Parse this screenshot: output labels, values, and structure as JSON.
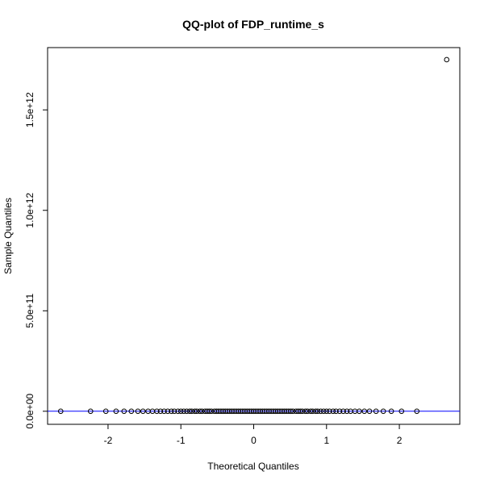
{
  "chart_data": {
    "type": "scatter",
    "title": "QQ-plot of FDP_runtime_s",
    "xlabel": "Theoretical Quantiles",
    "ylabel": "Sample Quantiles",
    "xlim": [
      -2.83,
      2.83
    ],
    "ylim": [
      -65000000000,
      1810000000000
    ],
    "x_ticks": [
      -2,
      -1,
      0,
      1,
      2
    ],
    "x_tick_labels": [
      "-2",
      "-1",
      "0",
      "1",
      "2"
    ],
    "y_ticks": [
      0,
      500000000000,
      1000000000000,
      1500000000000
    ],
    "y_tick_labels": [
      "0.0e+00",
      "5.0e+11",
      "1.0e+12",
      "1.5e+12"
    ],
    "grid": false,
    "legend": "none",
    "reference_line": {
      "type": "qqline",
      "color": "#0000ff",
      "y": 0
    },
    "point_color": "#000000",
    "series": [
      {
        "x": [
          -2.65,
          -2.24,
          -2.03,
          -1.89,
          -1.78,
          -1.68,
          -1.59,
          -1.52,
          -1.45,
          -1.39,
          -1.33,
          -1.28,
          -1.23,
          -1.18,
          -1.13,
          -1.09,
          -1.04,
          -1.0,
          -0.96,
          -0.92,
          -0.88,
          -0.85,
          -0.81,
          -0.78,
          -0.74,
          -0.71,
          -0.67,
          -0.64,
          -0.61,
          -0.58,
          -0.54,
          -0.51,
          -0.48,
          -0.45,
          -0.42,
          -0.39,
          -0.36,
          -0.33,
          -0.3,
          -0.27,
          -0.24,
          -0.21,
          -0.18,
          -0.15,
          -0.12,
          -0.09,
          -0.06,
          -0.03,
          0.0,
          0.03,
          0.06,
          0.09,
          0.12,
          0.15,
          0.18,
          0.21,
          0.24,
          0.27,
          0.3,
          0.33,
          0.36,
          0.39,
          0.42,
          0.45,
          0.48,
          0.51,
          0.54,
          0.58,
          0.61,
          0.64,
          0.67,
          0.71,
          0.74,
          0.78,
          0.81,
          0.85,
          0.88,
          0.92,
          0.96,
          1.0,
          1.04,
          1.09,
          1.13,
          1.18,
          1.23,
          1.28,
          1.33,
          1.39,
          1.45,
          1.52,
          1.59,
          1.68,
          1.78,
          1.89,
          2.03,
          2.24,
          2.65
        ],
        "y": [
          0,
          0,
          0,
          0,
          0,
          0,
          0,
          0,
          0,
          0,
          0,
          0,
          0,
          0,
          0,
          0,
          0,
          0,
          0,
          0,
          0,
          0,
          0,
          0,
          0,
          0,
          0,
          0,
          0,
          0,
          0,
          0,
          0,
          0,
          0,
          0,
          0,
          0,
          0,
          0,
          0,
          0,
          0,
          0,
          0,
          0,
          0,
          0,
          0,
          0,
          0,
          0,
          0,
          0,
          0,
          0,
          0,
          0,
          0,
          0,
          0,
          0,
          0,
          0,
          0,
          0,
          0,
          0,
          0,
          0,
          0,
          0,
          0,
          0,
          0,
          0,
          0,
          0,
          0,
          0,
          0,
          0,
          0,
          0,
          0,
          0,
          0,
          0,
          0,
          0,
          0,
          0,
          0,
          0,
          0,
          0,
          1750000000000
        ]
      }
    ]
  }
}
